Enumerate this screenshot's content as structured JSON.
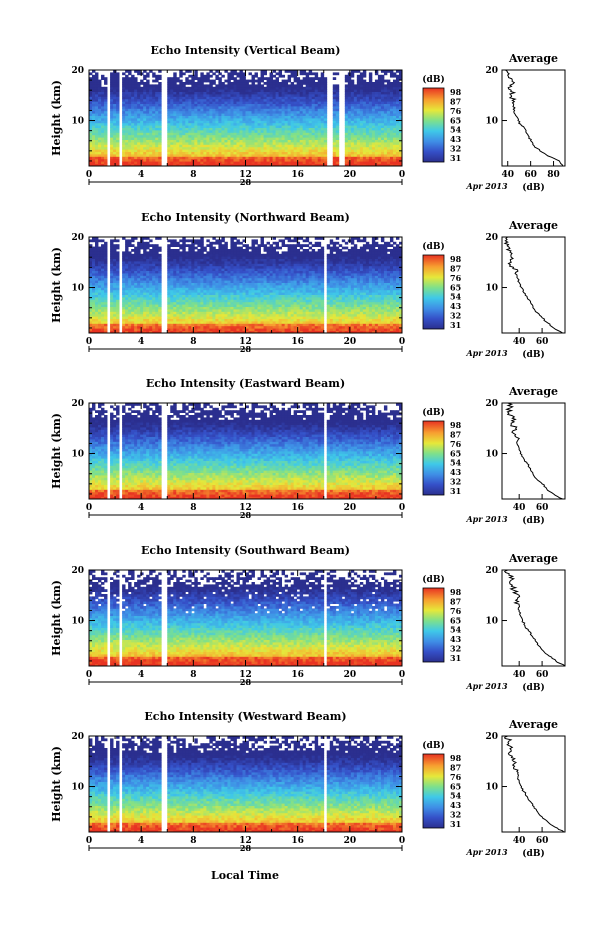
{
  "figure": {
    "x_axis_label": "Local Time",
    "date_label": "Apr 2013",
    "day_label": "28",
    "colorbar_unit": "(dB)",
    "average_title": "Average",
    "average_xlabel": "(dB)",
    "y_label": "Height (km)"
  },
  "chart_data": [
    {
      "type": "heatmap",
      "title": "Echo Intensity (Vertical Beam)",
      "xlabel": "",
      "ylabel": "Height (km)",
      "xticks": [
        "0",
        "4",
        "8",
        "12",
        "16",
        "20",
        "0"
      ],
      "yticks": [
        "10",
        "20"
      ],
      "colorbar_ticks": [
        "31",
        "32",
        "43",
        "54",
        "65",
        "76",
        "87",
        "98"
      ],
      "colorbar_range": [
        21,
        98
      ],
      "data_gaps_hours": [
        [
          1.3,
          1.7
        ],
        [
          2.4,
          2.6
        ],
        [
          5.5,
          6.0
        ],
        [
          18.3,
          18.6
        ],
        [
          19.2,
          19.5
        ]
      ],
      "profile": {
        "title": "Average",
        "xlabel": "(dB)",
        "xticks": [
          "40",
          "60",
          "80"
        ],
        "yticks": [
          "10",
          "20"
        ],
        "xlim": [
          35,
          90
        ],
        "ylim": [
          1,
          20
        ],
        "points": [
          [
            1,
            88
          ],
          [
            2,
            85
          ],
          [
            3,
            75
          ],
          [
            4,
            68
          ],
          [
            5,
            63
          ],
          [
            6,
            60
          ],
          [
            7,
            58
          ],
          [
            8,
            56
          ],
          [
            9,
            52
          ],
          [
            10,
            49
          ],
          [
            11,
            47
          ],
          [
            12,
            46
          ],
          [
            13,
            45
          ],
          [
            14,
            44
          ],
          [
            15,
            43
          ],
          [
            16,
            43
          ],
          [
            17,
            42
          ],
          [
            18,
            44
          ],
          [
            19,
            40
          ],
          [
            20,
            38
          ]
        ]
      }
    },
    {
      "type": "heatmap",
      "title": "Echo Intensity (Northward Beam)",
      "xlabel": "",
      "ylabel": "Height (km)",
      "xticks": [
        "0",
        "4",
        "8",
        "12",
        "16",
        "20",
        "0"
      ],
      "yticks": [
        "10",
        "20"
      ],
      "colorbar_ticks": [
        "31",
        "32",
        "43",
        "54",
        "65",
        "76",
        "87",
        "98"
      ],
      "colorbar_range": [
        21,
        98
      ],
      "data_gaps_hours": [
        [
          1.3,
          1.6
        ],
        [
          2.4,
          2.6
        ],
        [
          5.5,
          5.9
        ],
        [
          18.0,
          18.3
        ]
      ],
      "profile": {
        "title": "Average",
        "xlabel": "(dB)",
        "xticks": [
          "40",
          "60"
        ],
        "yticks": [
          "10",
          "20"
        ],
        "xlim": [
          25,
          80
        ],
        "ylim": [
          1,
          20
        ],
        "points": [
          [
            1,
            78
          ],
          [
            2,
            70
          ],
          [
            3,
            65
          ],
          [
            4,
            60
          ],
          [
            5,
            56
          ],
          [
            6,
            52
          ],
          [
            7,
            50
          ],
          [
            8,
            47
          ],
          [
            9,
            44
          ],
          [
            10,
            42
          ],
          [
            11,
            40
          ],
          [
            12,
            38
          ],
          [
            13,
            37
          ],
          [
            14,
            35
          ],
          [
            15,
            33
          ],
          [
            16,
            33
          ],
          [
            17,
            32
          ],
          [
            18,
            31
          ],
          [
            19,
            30
          ],
          [
            20,
            30
          ]
        ]
      }
    },
    {
      "type": "heatmap",
      "title": "Echo Intensity (Eastward Beam)",
      "xlabel": "",
      "ylabel": "Height (km)",
      "xticks": [
        "0",
        "4",
        "8",
        "12",
        "16",
        "20",
        "0"
      ],
      "yticks": [
        "10",
        "20"
      ],
      "colorbar_ticks": [
        "31",
        "32",
        "43",
        "54",
        "65",
        "76",
        "87",
        "98"
      ],
      "colorbar_range": [
        21,
        98
      ],
      "data_gaps_hours": [
        [
          1.3,
          1.6
        ],
        [
          2.4,
          2.6
        ],
        [
          5.5,
          5.9
        ],
        [
          18.0,
          18.3
        ]
      ],
      "profile": {
        "title": "Average",
        "xlabel": "(dB)",
        "xticks": [
          "40",
          "60"
        ],
        "yticks": [
          "10",
          "20"
        ],
        "xlim": [
          25,
          80
        ],
        "ylim": [
          1,
          20
        ],
        "points": [
          [
            1,
            78
          ],
          [
            2,
            70
          ],
          [
            3,
            64
          ],
          [
            4,
            60
          ],
          [
            5,
            55
          ],
          [
            6,
            52
          ],
          [
            7,
            50
          ],
          [
            8,
            47
          ],
          [
            9,
            44
          ],
          [
            10,
            41
          ],
          [
            11,
            40
          ],
          [
            12,
            38
          ],
          [
            13,
            40
          ],
          [
            14,
            35
          ],
          [
            15,
            37
          ],
          [
            16,
            33
          ],
          [
            17,
            34
          ],
          [
            18,
            31
          ],
          [
            19,
            32
          ],
          [
            20,
            30
          ]
        ]
      }
    },
    {
      "type": "heatmap",
      "title": "Echo Intensity (Southward Beam)",
      "xlabel": "",
      "ylabel": "Height (km)",
      "xticks": [
        "0",
        "4",
        "8",
        "12",
        "16",
        "20",
        "0"
      ],
      "yticks": [
        "10",
        "20"
      ],
      "colorbar_ticks": [
        "31",
        "32",
        "43",
        "54",
        "65",
        "76",
        "87",
        "98"
      ],
      "colorbar_range": [
        21,
        98
      ],
      "data_gaps_hours": [
        [
          1.3,
          1.6
        ],
        [
          2.4,
          2.6
        ],
        [
          5.5,
          5.9
        ],
        [
          18.0,
          18.3
        ]
      ],
      "profile": {
        "title": "Average",
        "xlabel": "(dB)",
        "xticks": [
          "40",
          "60"
        ],
        "yticks": [
          "10",
          "20"
        ],
        "xlim": [
          25,
          80
        ],
        "ylim": [
          1,
          20
        ],
        "points": [
          [
            1,
            80
          ],
          [
            2,
            72
          ],
          [
            3,
            66
          ],
          [
            4,
            61
          ],
          [
            5,
            57
          ],
          [
            6,
            54
          ],
          [
            7,
            51
          ],
          [
            8,
            48
          ],
          [
            9,
            45
          ],
          [
            10,
            43
          ],
          [
            11,
            41
          ],
          [
            12,
            40
          ],
          [
            13,
            40
          ],
          [
            14,
            37
          ],
          [
            15,
            40
          ],
          [
            16,
            35
          ],
          [
            17,
            34
          ],
          [
            18,
            33
          ],
          [
            19,
            31
          ],
          [
            20,
            30
          ]
        ]
      }
    },
    {
      "type": "heatmap",
      "title": "Echo Intensity (Westward Beam)",
      "xlabel": "Local Time",
      "ylabel": "Height (km)",
      "xticks": [
        "0",
        "4",
        "8",
        "12",
        "16",
        "20",
        "0"
      ],
      "yticks": [
        "10",
        "20"
      ],
      "colorbar_ticks": [
        "31",
        "32",
        "43",
        "54",
        "65",
        "76",
        "87",
        "98"
      ],
      "colorbar_range": [
        21,
        98
      ],
      "data_gaps_hours": [
        [
          1.3,
          1.6
        ],
        [
          2.4,
          2.6
        ],
        [
          5.5,
          5.9
        ],
        [
          18.0,
          18.3
        ]
      ],
      "profile": {
        "title": "Average",
        "xlabel": "(dB)",
        "xticks": [
          "40",
          "60"
        ],
        "yticks": [
          "10",
          "20"
        ],
        "xlim": [
          25,
          80
        ],
        "ylim": [
          1,
          20
        ],
        "points": [
          [
            1,
            79
          ],
          [
            2,
            71
          ],
          [
            3,
            65
          ],
          [
            4,
            60
          ],
          [
            5,
            56
          ],
          [
            6,
            53
          ],
          [
            7,
            50
          ],
          [
            8,
            47
          ],
          [
            9,
            44
          ],
          [
            10,
            42
          ],
          [
            11,
            40
          ],
          [
            12,
            39
          ],
          [
            13,
            38
          ],
          [
            14,
            36
          ],
          [
            15,
            35
          ],
          [
            16,
            34
          ],
          [
            17,
            33
          ],
          [
            18,
            32
          ],
          [
            19,
            31
          ],
          [
            20,
            30
          ]
        ]
      }
    }
  ]
}
